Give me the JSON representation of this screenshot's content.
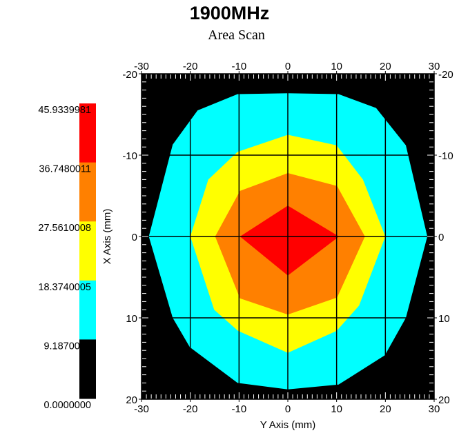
{
  "title": "1900MHz",
  "subtitle": "Area Scan",
  "chart_data": {
    "type": "heatmap",
    "title": "1900MHz",
    "subtitle": "Area Scan",
    "xlabel": "Y Axis (mm)",
    "ylabel": "X Axis (mm)",
    "xlim": [
      -30,
      30
    ],
    "ylim": [
      -20,
      20
    ],
    "y_inverted": true,
    "x_ticks": [
      "-30",
      "-20",
      "-10",
      "0",
      "10",
      "20",
      "30"
    ],
    "y_ticks_left": [
      "-20",
      "-10",
      "0",
      "10",
      "20"
    ],
    "y_ticks_right": [
      "-20",
      "-10",
      "0",
      "10",
      "20"
    ],
    "x_tick_values": [
      -30,
      -20,
      -10,
      0,
      10,
      20,
      30
    ],
    "y_tick_values": [
      -20,
      -10,
      0,
      10,
      20
    ],
    "grid": true,
    "legend_position": "left",
    "colors": {
      "background": "#000000",
      "grid": "#000000"
    },
    "levels": [
      {
        "label": "45.9339981",
        "value": 45.9339981
      },
      {
        "label": "36.7480011",
        "value": 36.7480011
      },
      {
        "label": "27.5610008",
        "value": 27.5610008
      },
      {
        "label": "18.3740005",
        "value": 18.3740005
      },
      {
        "label": "9.1870003",
        "value": 9.1870003
      },
      {
        "label": "0.0000000",
        "value": 0.0
      }
    ],
    "bands": [
      {
        "min": 36.7480011,
        "max": 45.9339981,
        "color": "#ff0000"
      },
      {
        "min": 27.5610008,
        "max": 36.7480011,
        "color": "#ff8000"
      },
      {
        "min": 18.3740005,
        "max": 27.5610008,
        "color": "#ffff00"
      },
      {
        "min": 9.1870003,
        "max": 18.3740005,
        "color": "#00ffff"
      },
      {
        "min": 0.0,
        "max": 9.1870003,
        "color": "#000000"
      }
    ],
    "contour_regions": [
      {
        "band": "9.1870003-18.3740005",
        "color": "#00ffff",
        "polygon": [
          [
            0,
            -17.6
          ],
          [
            10.4,
            -17.5
          ],
          [
            18.1,
            -15.8
          ],
          [
            24.2,
            -11.2
          ],
          [
            28.6,
            0
          ],
          [
            24.2,
            10.0
          ],
          [
            19.9,
            14.6
          ],
          [
            10.4,
            18.2
          ],
          [
            0,
            18.8
          ],
          [
            -10.3,
            18.0
          ],
          [
            -20.1,
            13.6
          ],
          [
            -23.6,
            10.0
          ],
          [
            -28.5,
            0
          ],
          [
            -23.6,
            -11.3
          ],
          [
            -18.5,
            -15.5
          ],
          [
            -10.3,
            -17.5
          ]
        ]
      },
      {
        "band": "18.3740005-27.5610008",
        "color": "#ffff00",
        "polygon": [
          [
            0,
            -12.5
          ],
          [
            10.0,
            -11.2
          ],
          [
            15.4,
            -7.0
          ],
          [
            20.0,
            0
          ],
          [
            14.6,
            8.5
          ],
          [
            10.0,
            11.6
          ],
          [
            0,
            14.3
          ],
          [
            -10.2,
            11.6
          ],
          [
            -15.1,
            9.0
          ],
          [
            -20.0,
            0
          ],
          [
            -16.3,
            -7.0
          ],
          [
            -10.3,
            -10.4
          ]
        ]
      },
      {
        "band": "27.5610008-36.7480011",
        "color": "#ff8000",
        "polygon": [
          [
            0,
            -7.8
          ],
          [
            10.1,
            -6.2
          ],
          [
            15.8,
            0
          ],
          [
            10.1,
            7.5
          ],
          [
            0,
            9.6
          ],
          [
            -9.8,
            7.6
          ],
          [
            -14.9,
            0
          ],
          [
            -9.8,
            -5.6
          ]
        ]
      },
      {
        "band": "36.7480011-45.9339981",
        "color": "#ff0000",
        "polygon": [
          [
            0,
            -3.8
          ],
          [
            10.5,
            0
          ],
          [
            0,
            4.8
          ],
          [
            -9.8,
            0
          ]
        ]
      }
    ]
  }
}
